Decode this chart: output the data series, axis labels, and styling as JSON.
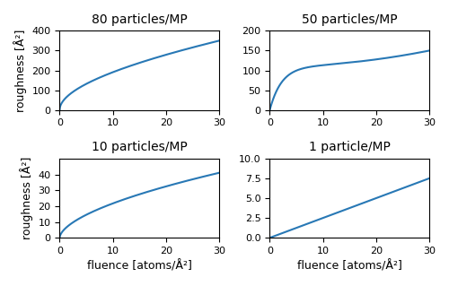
{
  "titles": [
    "80 particles/MP",
    "50 particles/MP",
    "10 particles/MP",
    "1 particle/MP"
  ],
  "ylabel": "roughness [Å²]",
  "xlabel": "fluence [atoms/Å²]",
  "xlim": [
    0,
    30
  ],
  "ylims": [
    [
      0,
      400
    ],
    [
      0,
      200
    ],
    [
      0,
      50
    ],
    [
      0,
      10
    ]
  ],
  "yticks_80": [
    0,
    100,
    200,
    300,
    400
  ],
  "yticks_50": [
    0,
    50,
    100,
    150,
    200
  ],
  "yticks_10": [
    0,
    10,
    20,
    30,
    40
  ],
  "yticks_1": [
    0.0,
    2.5,
    5.0,
    7.5,
    10.0
  ],
  "line_color": "#2878b5",
  "line_width": 1.5,
  "figsize": [
    5.0,
    3.19
  ],
  "dpi": 100,
  "title_fontsize": 10,
  "label_fontsize": 9,
  "tick_fontsize": 8
}
